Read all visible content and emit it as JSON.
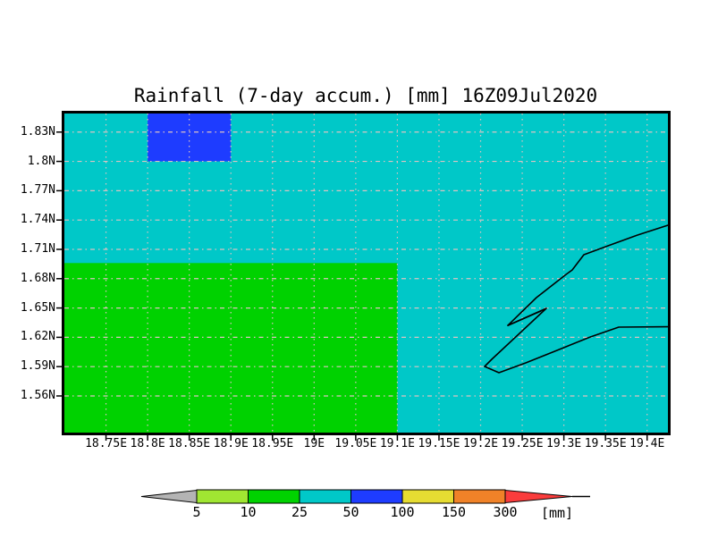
{
  "colors": {
    "page_background": "#ffffff",
    "grid": "#ddc2c2",
    "border": "#000000",
    "coastline": "#000000",
    "levels": {
      "gray": "#b4b4b4",
      "light_green": "#a0e632",
      "green": "#00d200",
      "cyan": "#00c8c8",
      "blue": "#1e3cff",
      "yellow": "#e6dc32",
      "orange": "#f08228",
      "red": "#fa3c3c"
    }
  },
  "chart_data": {
    "type": "heatmap",
    "title": "Rainfall (7-day accum.) [mm] 16Z09Jul2020",
    "xlabel": "",
    "ylabel": "",
    "lon_range": [
      18.7,
      19.425
    ],
    "lat_range": [
      1.5225,
      1.849
    ],
    "grid": "dashed",
    "x_tick_values": [
      18.75,
      18.8,
      18.85,
      18.9,
      18.95,
      19,
      19.05,
      19.1,
      19.15,
      19.2,
      19.25,
      19.3,
      19.35,
      19.4
    ],
    "x_tick_labels": [
      "18.75E",
      "18.8E",
      "18.85E",
      "18.9E",
      "18.95E",
      "19E",
      "19.05E",
      "19.1E",
      "19.15E",
      "19.2E",
      "19.25E",
      "19.3E",
      "19.35E",
      "19.4E"
    ],
    "y_tick_values": [
      1.56,
      1.59,
      1.62,
      1.65,
      1.68,
      1.71,
      1.74,
      1.77,
      1.8,
      1.83
    ],
    "y_tick_labels": [
      "1.56N",
      "1.59N",
      "1.62N",
      "1.65N",
      "1.68N",
      "1.71N",
      "1.74N",
      "1.77N",
      "1.8N",
      "1.83N"
    ],
    "background_cell": {
      "value_range": [
        25,
        50
      ],
      "color_key": "cyan"
    },
    "cells": [
      {
        "lon": [
          18.7,
          19.1
        ],
        "lat": [
          1.5225,
          1.696
        ],
        "value_range": [
          10,
          25
        ],
        "color_key": "green"
      },
      {
        "lon": [
          18.8,
          18.9
        ],
        "lat": [
          1.8,
          1.849
        ],
        "value_range": [
          50,
          100
        ],
        "color_key": "blue"
      }
    ],
    "coastlines": [
      [
        [
          19.425,
          1.7347
        ],
        [
          19.3885,
          1.7246
        ],
        [
          19.353,
          1.7136
        ],
        [
          19.324,
          1.7045
        ],
        [
          19.31,
          1.6889
        ],
        [
          19.3026,
          1.6843
        ],
        [
          19.267,
          1.6606
        ],
        [
          19.2327,
          1.6322
        ],
        [
          19.2789,
          1.6496
        ],
        [
          19.2134,
          1.5975
        ],
        [
          19.2048,
          1.5902
        ],
        [
          19.222,
          1.5838
        ],
        [
          19.2542,
          1.5938
        ],
        [
          19.2864,
          1.6048
        ],
        [
          19.3315,
          1.6203
        ],
        [
          19.3659,
          1.6304
        ],
        [
          19.425,
          1.6308
        ]
      ],
      [
        [
          19.2327,
          1.6322
        ],
        [
          19.2724,
          1.6469
        ]
      ]
    ],
    "colorbar": {
      "levels": [
        5,
        10,
        25,
        50,
        100,
        150,
        300
      ],
      "labels": [
        "5",
        "10",
        "25",
        "50",
        "100",
        "150",
        "300"
      ],
      "unit": "[mm]",
      "segment_color_keys": [
        "light_green",
        "green",
        "cyan",
        "blue",
        "yellow",
        "orange"
      ],
      "arrow_left_color_key": "gray",
      "arrow_right_color_key": "red"
    }
  }
}
